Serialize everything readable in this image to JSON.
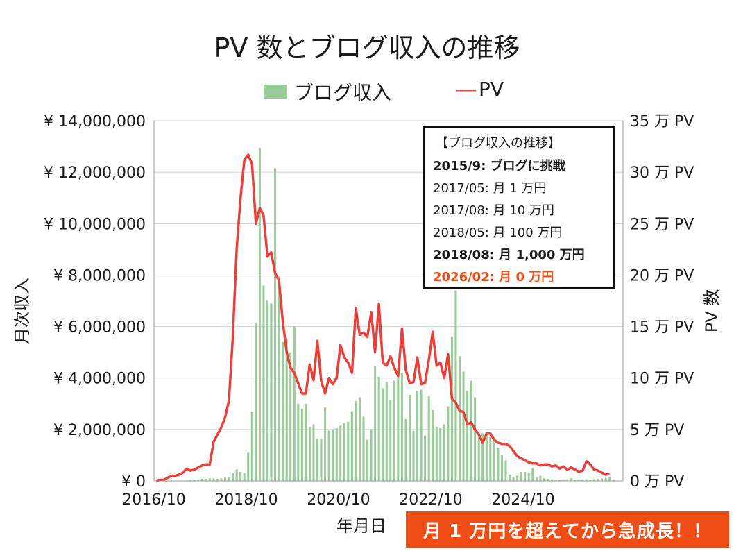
{
  "chart_data": {
    "type": "bar+line",
    "title": "PV 数とブログ収入の推移",
    "xlabel": "年月日",
    "ylabel_left": "月次収入",
    "ylabel_right": "PV 数",
    "ylim_left": [
      0,
      14000000
    ],
    "ylim_right": [
      0,
      35
    ],
    "left_ticks": [
      "¥ 0",
      "¥ 2,000,000",
      "¥ 4,000,000",
      "¥ 6,000,000",
      "¥ 8,000,000",
      "¥ 10,000,000",
      "¥ 12,000,000",
      "¥ 14,000,000"
    ],
    "right_ticks": [
      "0 万 PV",
      "5 万 PV",
      "10 万 PV",
      "15 万 PV",
      "20 万 PV",
      "25 万 PV",
      "30 万 PV",
      "35 万 PV"
    ],
    "x_tick_labels": [
      "2016/10",
      "2018/10",
      "2020/10",
      "2022/10",
      "2024/10"
    ],
    "x_start": "2016/10",
    "grid": true,
    "legend_position": "top-center",
    "series": [
      {
        "name": "ブログ収入",
        "type": "bar",
        "color": "#99cc99",
        "unit": "円",
        "values": [
          0,
          0,
          0,
          0,
          0,
          0,
          0,
          10000,
          20000,
          40000,
          50000,
          60000,
          80000,
          80000,
          100000,
          100000,
          80000,
          100000,
          120000,
          150000,
          300000,
          450000,
          350000,
          300000,
          1100000,
          2700000,
          6150000,
          12950000,
          7600000,
          7000000,
          6900000,
          12150000,
          7950000,
          5400000,
          5500000,
          5000000,
          6000000,
          3000000,
          2800000,
          3000000,
          2100000,
          2200000,
          1650000,
          1650000,
          2850000,
          1950000,
          2000000,
          2050000,
          2150000,
          2250000,
          2300000,
          2700000,
          3100000,
          3250000,
          2500000,
          1600000,
          2000000,
          4450000,
          4050000,
          3600000,
          3850000,
          3150000,
          3900000,
          4400000,
          4200000,
          2400000,
          3350000,
          1950000,
          3500000,
          3550000,
          1750000,
          3300000,
          2750000,
          2100000,
          2050000,
          2200000,
          2900000,
          5600000,
          7400000,
          4850000,
          4250000,
          3500000,
          3900000,
          3250000,
          1850000,
          1850000,
          1800000,
          1700000,
          1550000,
          1300000,
          1000000,
          800000,
          250000,
          150000,
          200000,
          350000,
          350000,
          300000,
          500000,
          150000,
          200000,
          100000,
          80000,
          60000,
          50000,
          40000,
          30000,
          60000,
          100000,
          50000,
          30000,
          40000,
          60000,
          50000,
          70000,
          80000,
          100000,
          120000,
          150000,
          50000,
          0,
          0
        ]
      },
      {
        "name": "PV",
        "type": "line",
        "color": "#e8403a",
        "unit": "万 PV",
        "values": [
          0.0,
          0.1,
          0.1,
          0.3,
          0.5,
          0.5,
          0.6,
          0.8,
          1.2,
          1.0,
          1.1,
          1.3,
          1.5,
          1.6,
          1.6,
          3.8,
          4.5,
          5.2,
          6.2,
          7.8,
          14.0,
          22.5,
          27.5,
          31.2,
          31.7,
          30.8,
          25.0,
          26.5,
          25.8,
          21.8,
          22.2,
          20.2,
          19.5,
          15.5,
          12.5,
          11.0,
          10.5,
          9.5,
          8.5,
          8.5,
          11.3,
          9.8,
          13.6,
          9.7,
          8.5,
          10.0,
          9.4,
          10.0,
          13.2,
          12.0,
          11.5,
          10.5,
          16.8,
          14.2,
          14.4,
          14.0,
          16.4,
          12.5,
          17.2,
          11.5,
          11.2,
          12.1,
          11.0,
          10.2,
          14.8,
          10.8,
          9.5,
          9.6,
          12.0,
          9.4,
          9.5,
          11.8,
          14.5,
          11.2,
          11.5,
          10.0,
          12.3,
          8.0,
          7.6,
          6.8,
          6.7,
          5.5,
          5.7,
          5.0,
          4.5,
          3.7,
          4.6,
          4.6,
          4.0,
          3.7,
          3.6,
          3.6,
          3.4,
          2.9,
          2.4,
          2.2,
          2.0,
          1.8,
          1.7,
          1.7,
          1.5,
          1.6,
          1.6,
          1.4,
          1.5,
          1.2,
          1.4,
          1.1,
          1.3,
          1.1,
          0.9,
          1.0,
          1.9,
          1.6,
          1.1,
          1.0,
          0.8,
          0.6,
          0.7
        ]
      }
    ]
  },
  "legend": {
    "bar_label": "ブログ収入",
    "line_marker": "―",
    "line_label": "PV"
  },
  "infobox": {
    "title": "【ブログ収入の推移】",
    "lines": [
      "2015/9: ブログに挑戦",
      "2017/05: 月 1 万円",
      "2017/08: 月 10 万円",
      "2018/05: 月 100 万円",
      "2018/08: 月 1,000 万円",
      "2026/02: 月 0 万円"
    ],
    "highlight_color": "#f04d14"
  },
  "callout": {
    "text": "月 1 万円を超えてから急成長！！",
    "bg_color": "#f04d14"
  }
}
